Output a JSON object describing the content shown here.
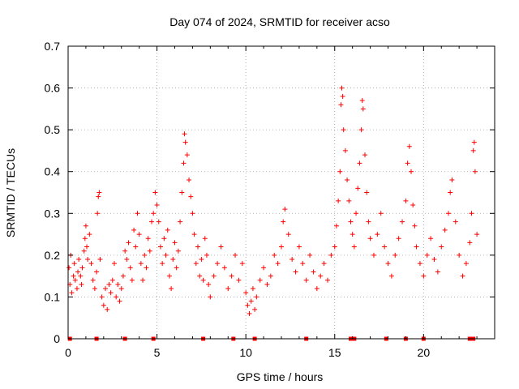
{
  "chart_data": {
    "type": "scatter",
    "title": "Day 074 of 2024, SRMTID for receiver acso",
    "xlabel": "GPS time / hours",
    "ylabel": "SRMTID / TECUs",
    "xlim": [
      0,
      24
    ],
    "ylim": [
      0,
      0.7
    ],
    "xticks": [
      0,
      5,
      10,
      15,
      20
    ],
    "xtick_labels": [
      "0",
      "5",
      "10",
      "15",
      "20"
    ],
    "yticks": [
      0,
      0.1,
      0.2,
      0.3,
      0.4,
      0.5,
      0.6,
      0.7
    ],
    "ytick_labels": [
      "0",
      "0.1",
      "0.2",
      "0.3",
      "0.4",
      "0.5",
      "0.6",
      "0.7"
    ],
    "grid": true,
    "marker": "+",
    "color": "#ff0000",
    "series": [
      {
        "name": "SRMTID",
        "points": [
          [
            0.05,
            0.17
          ],
          [
            0.1,
            0.13
          ],
          [
            0.15,
            0.2
          ],
          [
            0.2,
            0.11
          ],
          [
            0.3,
            0.15
          ],
          [
            0.35,
            0.18
          ],
          [
            0.4,
            0.14
          ],
          [
            0.5,
            0.12
          ],
          [
            0.55,
            0.16
          ],
          [
            0.6,
            0.19
          ],
          [
            0.7,
            0.15
          ],
          [
            0.75,
            0.13
          ],
          [
            0.8,
            0.17
          ],
          [
            0.9,
            0.21
          ],
          [
            0.95,
            0.24
          ],
          [
            1.0,
            0.27
          ],
          [
            1.05,
            0.22
          ],
          [
            1.1,
            0.19
          ],
          [
            1.2,
            0.25
          ],
          [
            1.3,
            0.18
          ],
          [
            1.4,
            0.14
          ],
          [
            1.5,
            0.12
          ],
          [
            1.6,
            0.16
          ],
          [
            1.65,
            0.3
          ],
          [
            1.7,
            0.34
          ],
          [
            1.75,
            0.35
          ],
          [
            1.8,
            0.19
          ],
          [
            1.9,
            0.1
          ],
          [
            2.0,
            0.08
          ],
          [
            2.1,
            0.12
          ],
          [
            2.2,
            0.07
          ],
          [
            2.3,
            0.13
          ],
          [
            2.4,
            0.11
          ],
          [
            2.5,
            0.14
          ],
          [
            2.6,
            0.18
          ],
          [
            2.7,
            0.1
          ],
          [
            2.8,
            0.13
          ],
          [
            2.9,
            0.09
          ],
          [
            3.0,
            0.12
          ],
          [
            3.1,
            0.15
          ],
          [
            3.2,
            0.21
          ],
          [
            3.3,
            0.19
          ],
          [
            3.4,
            0.23
          ],
          [
            3.5,
            0.17
          ],
          [
            3.6,
            0.14
          ],
          [
            3.7,
            0.26
          ],
          [
            3.8,
            0.22
          ],
          [
            3.9,
            0.3
          ],
          [
            4.0,
            0.25
          ],
          [
            4.1,
            0.18
          ],
          [
            4.2,
            0.14
          ],
          [
            4.3,
            0.2
          ],
          [
            4.4,
            0.17
          ],
          [
            4.5,
            0.24
          ],
          [
            4.6,
            0.21
          ],
          [
            4.7,
            0.28
          ],
          [
            4.8,
            0.3
          ],
          [
            4.9,
            0.35
          ],
          [
            5.0,
            0.32
          ],
          [
            5.1,
            0.28
          ],
          [
            5.2,
            0.22
          ],
          [
            5.3,
            0.18
          ],
          [
            5.4,
            0.24
          ],
          [
            5.5,
            0.2
          ],
          [
            5.6,
            0.26
          ],
          [
            5.7,
            0.15
          ],
          [
            5.8,
            0.12
          ],
          [
            5.9,
            0.19
          ],
          [
            6.0,
            0.23
          ],
          [
            6.1,
            0.17
          ],
          [
            6.2,
            0.21
          ],
          [
            6.3,
            0.28
          ],
          [
            6.4,
            0.35
          ],
          [
            6.5,
            0.42
          ],
          [
            6.55,
            0.49
          ],
          [
            6.6,
            0.47
          ],
          [
            6.7,
            0.44
          ],
          [
            6.8,
            0.38
          ],
          [
            6.9,
            0.34
          ],
          [
            7.0,
            0.3
          ],
          [
            7.1,
            0.25
          ],
          [
            7.2,
            0.18
          ],
          [
            7.3,
            0.22
          ],
          [
            7.4,
            0.15
          ],
          [
            7.5,
            0.19
          ],
          [
            7.6,
            0.14
          ],
          [
            7.7,
            0.24
          ],
          [
            7.8,
            0.2
          ],
          [
            7.9,
            0.13
          ],
          [
            8.0,
            0.1
          ],
          [
            8.2,
            0.15
          ],
          [
            8.4,
            0.18
          ],
          [
            8.6,
            0.22
          ],
          [
            8.8,
            0.17
          ],
          [
            9.0,
            0.12
          ],
          [
            9.2,
            0.15
          ],
          [
            9.4,
            0.2
          ],
          [
            9.6,
            0.14
          ],
          [
            9.8,
            0.18
          ],
          [
            10.0,
            0.11
          ],
          [
            10.1,
            0.08
          ],
          [
            10.2,
            0.06
          ],
          [
            10.3,
            0.09
          ],
          [
            10.4,
            0.12
          ],
          [
            10.5,
            0.07
          ],
          [
            10.6,
            0.1
          ],
          [
            10.8,
            0.14
          ],
          [
            11.0,
            0.17
          ],
          [
            11.2,
            0.13
          ],
          [
            11.4,
            0.15
          ],
          [
            11.6,
            0.2
          ],
          [
            11.8,
            0.18
          ],
          [
            12.0,
            0.22
          ],
          [
            12.1,
            0.28
          ],
          [
            12.2,
            0.31
          ],
          [
            12.4,
            0.25
          ],
          [
            12.6,
            0.19
          ],
          [
            12.8,
            0.16
          ],
          [
            13.0,
            0.22
          ],
          [
            13.2,
            0.18
          ],
          [
            13.4,
            0.14
          ],
          [
            13.6,
            0.2
          ],
          [
            13.8,
            0.16
          ],
          [
            14.0,
            0.12
          ],
          [
            14.2,
            0.15
          ],
          [
            14.4,
            0.18
          ],
          [
            14.6,
            0.14
          ],
          [
            14.8,
            0.2
          ],
          [
            15.0,
            0.22
          ],
          [
            15.1,
            0.27
          ],
          [
            15.2,
            0.33
          ],
          [
            15.3,
            0.4
          ],
          [
            15.35,
            0.56
          ],
          [
            15.4,
            0.6
          ],
          [
            15.45,
            0.58
          ],
          [
            15.5,
            0.5
          ],
          [
            15.6,
            0.45
          ],
          [
            15.7,
            0.38
          ],
          [
            15.8,
            0.33
          ],
          [
            15.9,
            0.28
          ],
          [
            16.0,
            0.25
          ],
          [
            16.1,
            0.22
          ],
          [
            16.2,
            0.3
          ],
          [
            16.3,
            0.36
          ],
          [
            16.4,
            0.42
          ],
          [
            16.5,
            0.5
          ],
          [
            16.55,
            0.57
          ],
          [
            16.6,
            0.55
          ],
          [
            16.7,
            0.44
          ],
          [
            16.8,
            0.35
          ],
          [
            16.9,
            0.28
          ],
          [
            17.0,
            0.24
          ],
          [
            17.2,
            0.2
          ],
          [
            17.4,
            0.25
          ],
          [
            17.6,
            0.3
          ],
          [
            17.8,
            0.22
          ],
          [
            18.0,
            0.18
          ],
          [
            18.2,
            0.15
          ],
          [
            18.4,
            0.2
          ],
          [
            18.6,
            0.24
          ],
          [
            18.8,
            0.28
          ],
          [
            19.0,
            0.33
          ],
          [
            19.1,
            0.42
          ],
          [
            19.2,
            0.46
          ],
          [
            19.3,
            0.4
          ],
          [
            19.4,
            0.32
          ],
          [
            19.5,
            0.27
          ],
          [
            19.6,
            0.22
          ],
          [
            19.8,
            0.18
          ],
          [
            20.0,
            0.15
          ],
          [
            20.2,
            0.2
          ],
          [
            20.4,
            0.24
          ],
          [
            20.6,
            0.19
          ],
          [
            20.8,
            0.16
          ],
          [
            21.0,
            0.22
          ],
          [
            21.2,
            0.26
          ],
          [
            21.4,
            0.3
          ],
          [
            21.5,
            0.35
          ],
          [
            21.6,
            0.38
          ],
          [
            21.8,
            0.28
          ],
          [
            22.0,
            0.2
          ],
          [
            22.2,
            0.15
          ],
          [
            22.4,
            0.18
          ],
          [
            22.6,
            0.23
          ],
          [
            22.7,
            0.3
          ],
          [
            22.8,
            0.45
          ],
          [
            22.85,
            0.47
          ],
          [
            22.9,
            0.4
          ],
          [
            23.0,
            0.25
          ]
        ]
      }
    ],
    "zero_markers": [
      0.1,
      1.6,
      3.2,
      4.8,
      7.6,
      9.3,
      10.5,
      13.4,
      15.9,
      16.1,
      17.9,
      19.0,
      20.0,
      22.6,
      22.8
    ]
  }
}
